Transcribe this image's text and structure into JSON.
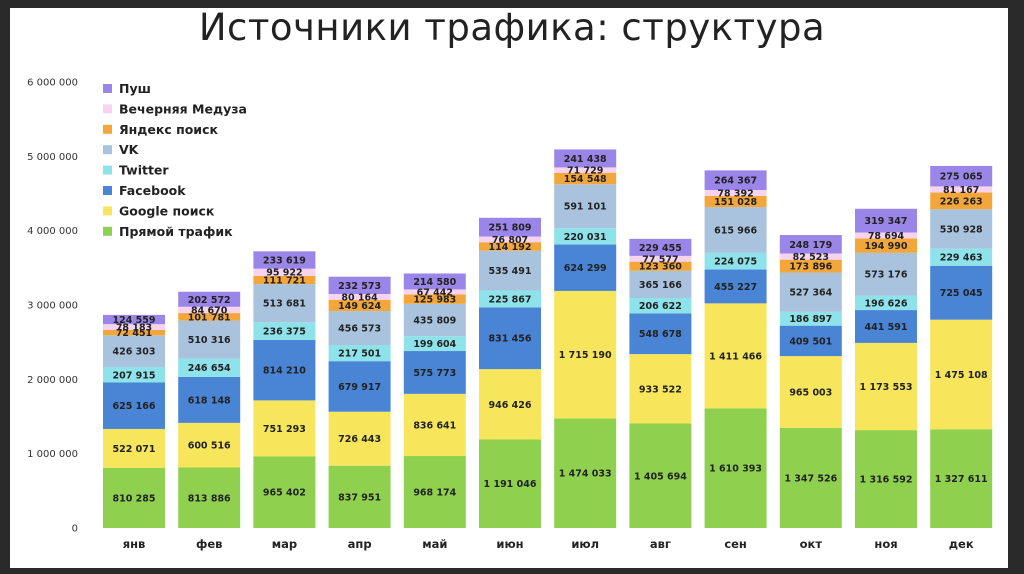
{
  "title": "Источники трафика: структура",
  "chart_data": {
    "type": "bar",
    "stacked": true,
    "categories": [
      "янв",
      "фев",
      "мар",
      "апр",
      "май",
      "июн",
      "июл",
      "авг",
      "сен",
      "окт",
      "ноя",
      "дек"
    ],
    "ylim": [
      0,
      6000000
    ],
    "yticks": [
      0,
      1000000,
      2000000,
      3000000,
      4000000,
      5000000,
      6000000
    ],
    "ytick_labels": [
      "0",
      "1 000 000",
      "2 000 000",
      "3 000 000",
      "4 000 000",
      "5 000 000",
      "6 000 000"
    ],
    "legend_position": "top-left",
    "grid": false,
    "series": [
      {
        "name": "Прямой трафик",
        "color": "#8fd14f",
        "values": [
          810285,
          813886,
          965402,
          837951,
          968174,
          1191046,
          1474033,
          1405694,
          1610393,
          1347526,
          1316592,
          1327611
        ],
        "labels": [
          "810 285",
          "813 886",
          "965 402",
          "837 951",
          "968 174",
          "1 191 046",
          "1 474 033",
          "1 405 694",
          "1 610 393",
          "1 347 526",
          "1 316 592",
          "1 327 611"
        ]
      },
      {
        "name": "Google поиск",
        "color": "#f7e65c",
        "values": [
          522071,
          600516,
          751293,
          726443,
          836641,
          946426,
          1715190,
          933522,
          1411466,
          965003,
          1173553,
          1475108
        ],
        "labels": [
          "522 071",
          "600 516",
          "751 293",
          "726 443",
          "836 641",
          "946 426",
          "1 715 190",
          "933 522",
          "1 411 466",
          "965 003",
          "1 173 553",
          "1 475 108"
        ]
      },
      {
        "name": "Facebook",
        "color": "#4a84d4",
        "values": [
          625166,
          618148,
          814210,
          679917,
          575773,
          831456,
          624299,
          548678,
          455227,
          409501,
          441591,
          725045
        ],
        "labels": [
          "625 166",
          "618 148",
          "814 210",
          "679 917",
          "575 773",
          "831 456",
          "624 299",
          "548 678",
          "455 227",
          "409 501",
          "441 591",
          "725 045"
        ]
      },
      {
        "name": "Twitter",
        "color": "#8ee3ea",
        "values": [
          207915,
          246654,
          236375,
          217501,
          199604,
          225867,
          220031,
          206622,
          224075,
          186897,
          196626,
          229463
        ],
        "labels": [
          "207 915",
          "246 654",
          "236 375",
          "217 501",
          "199 604",
          "225 867",
          "220 031",
          "206 622",
          "224 075",
          "186 897",
          "196 626",
          "229 463"
        ]
      },
      {
        "name": "VK",
        "color": "#a9c3de",
        "values": [
          426303,
          510316,
          513681,
          456573,
          435809,
          535491,
          591101,
          365166,
          615966,
          527364,
          573176,
          530928
        ],
        "labels": [
          "426 303",
          "510 316",
          "513 681",
          "456 573",
          "435 809",
          "535 491",
          "591 101",
          "365 166",
          "615 966",
          "527 364",
          "573 176",
          "530 928"
        ]
      },
      {
        "name": "Яндекс поиск",
        "color": "#f3a73b",
        "values": [
          72451,
          101781,
          111721,
          149624,
          125983,
          114192,
          154548,
          123360,
          151028,
          173896,
          194990,
          226263
        ],
        "labels": [
          "72 451",
          "101 781",
          "111 721",
          "149 624",
          "125 983",
          "114 192",
          "154 548",
          "123 360",
          "151 028",
          "173 896",
          "194 990",
          "226 263"
        ]
      },
      {
        "name": "Вечерняя Медуза",
        "color": "#f6d4ee",
        "values": [
          78183,
          84670,
          95922,
          80164,
          67442,
          76807,
          71729,
          77577,
          78392,
          82523,
          78694,
          81167
        ],
        "labels": [
          "78 183",
          "84 670",
          "95 922",
          "80 164",
          "67 442",
          "76 807",
          "71 729",
          "77 577",
          "78 392",
          "82 523",
          "78 694",
          "81 167"
        ]
      },
      {
        "name": "Пуш",
        "color": "#9a86e8",
        "values": [
          124559,
          202572,
          233619,
          232573,
          214580,
          251809,
          241438,
          229455,
          264367,
          248179,
          319347,
          275065
        ],
        "labels": [
          "124 559",
          "202 572",
          "233 619",
          "232 573",
          "214 580",
          "251 809",
          "241 438",
          "229 455",
          "264 367",
          "248 179",
          "319 347",
          "275 065"
        ]
      }
    ]
  }
}
